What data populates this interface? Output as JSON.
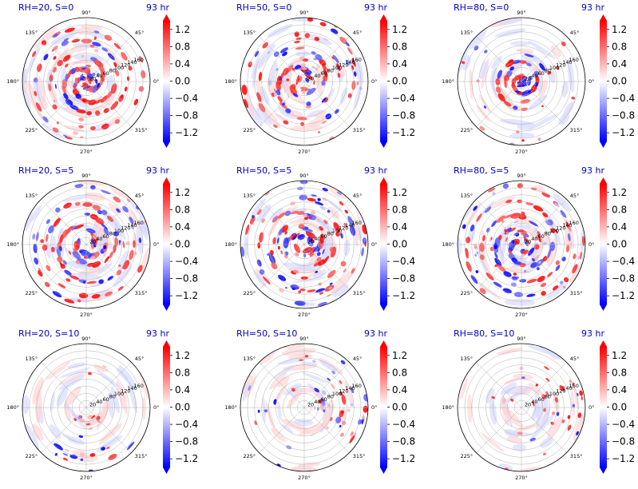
{
  "figure": {
    "colorbar": {
      "ticks": [
        "1.2",
        "0.8",
        "0.4",
        "0.0",
        "−0.4",
        "−0.8",
        "−1.2"
      ],
      "tick_values": [
        1.2,
        0.8,
        0.4,
        0.0,
        -0.4,
        -0.8,
        -1.2
      ],
      "vmin": -1.4,
      "vmax": 1.4,
      "colormap": "bwr",
      "low_color": "#0000ff",
      "mid_color": "#ffffff",
      "high_color": "#ff0000"
    },
    "angle_labels": [
      "0°",
      "45°",
      "90°",
      "135°",
      "180°",
      "225°",
      "270°",
      "315°"
    ],
    "radial_labels": [
      "20",
      "40",
      "60",
      "80",
      "100",
      "120",
      "140",
      "160"
    ],
    "title_color": "#0000cc"
  },
  "chart_data": [
    {
      "type": "heatmap",
      "projection": "polar",
      "title_left": "RH=20, S=0",
      "title_right": "93 hr",
      "radial_ticks": [
        20,
        40,
        60,
        80,
        100,
        120,
        140,
        160
      ],
      "angle_ticks_deg": [
        0,
        45,
        90,
        135,
        180,
        225,
        270,
        315
      ],
      "rmax": 180,
      "pattern": "concentrated spiral bands near center"
    },
    {
      "type": "heatmap",
      "projection": "polar",
      "title_left": "RH=50, S=0",
      "title_right": "93 hr",
      "radial_ticks": [
        20,
        40,
        60,
        80,
        100,
        120,
        140,
        160
      ],
      "angle_ticks_deg": [
        0,
        45,
        90,
        135,
        180,
        225,
        270,
        315
      ],
      "rmax": 180,
      "pattern": "broad spiral bands"
    },
    {
      "type": "heatmap",
      "projection": "polar",
      "title_left": "RH=80, S=0",
      "title_right": "93 hr",
      "radial_ticks": [
        20,
        40,
        60,
        80,
        100,
        120,
        140,
        160
      ],
      "angle_ticks_deg": [
        0,
        45,
        90,
        135,
        180,
        225,
        270,
        315
      ],
      "rmax": 180,
      "pattern": "compact core, faint outer rings"
    },
    {
      "type": "heatmap",
      "projection": "polar",
      "title_left": "RH=20, S=5",
      "title_right": "93 hr",
      "radial_ticks": [
        20,
        40,
        60,
        80,
        100,
        120,
        140,
        160
      ],
      "angle_ticks_deg": [
        0,
        45,
        90,
        135,
        180,
        225,
        270,
        315
      ],
      "rmax": 180,
      "pattern": "spiral bands with blue core"
    },
    {
      "type": "heatmap",
      "projection": "polar",
      "title_left": "RH=50, S=5",
      "title_right": "93 hr",
      "radial_ticks": [
        20,
        40,
        60,
        80,
        100,
        120,
        140,
        160
      ],
      "angle_ticks_deg": [
        0,
        45,
        90,
        135,
        180,
        225,
        270,
        315
      ],
      "rmax": 180,
      "pattern": "scattered convective cells"
    },
    {
      "type": "heatmap",
      "projection": "polar",
      "title_left": "RH=80, S=5",
      "title_right": "93 hr",
      "radial_ticks": [
        20,
        40,
        60,
        80,
        100,
        120,
        140,
        160
      ],
      "angle_ticks_deg": [
        0,
        45,
        90,
        135,
        180,
        225,
        270,
        315
      ],
      "rmax": 180,
      "pattern": "intense spiral bands"
    },
    {
      "type": "heatmap",
      "projection": "polar",
      "title_left": "RH=20, S=10",
      "title_right": "93 hr",
      "radial_ticks": [
        20,
        40,
        60,
        80,
        100,
        120,
        140,
        160
      ],
      "angle_ticks_deg": [
        0,
        45,
        90,
        135,
        180,
        225,
        270,
        315
      ],
      "rmax": 180,
      "pattern": "weak, convection in south"
    },
    {
      "type": "heatmap",
      "projection": "polar",
      "title_left": "RH=50, S=10",
      "title_right": "93 hr",
      "radial_ticks": [
        20,
        40,
        60,
        80,
        100,
        120,
        140,
        160
      ],
      "angle_ticks_deg": [
        0,
        45,
        90,
        135,
        180,
        225,
        270,
        315
      ],
      "rmax": 180,
      "pattern": "sheared convection east side"
    },
    {
      "type": "heatmap",
      "projection": "polar",
      "title_left": "RH=80, S=10",
      "title_right": "93 hr",
      "radial_ticks": [
        20,
        40,
        60,
        80,
        100,
        120,
        140,
        160
      ],
      "angle_ticks_deg": [
        0,
        45,
        90,
        135,
        180,
        225,
        270,
        315
      ],
      "rmax": 180,
      "pattern": "sheared band to the east"
    }
  ]
}
